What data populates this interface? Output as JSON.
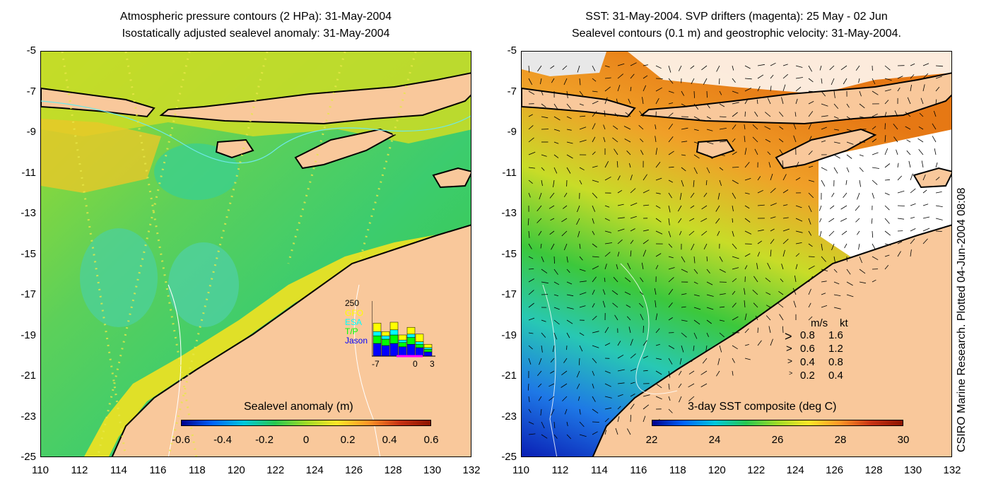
{
  "left_panel": {
    "title_line1": "Atmospheric pressure contours (2 HPa): 31-May-2004",
    "title_line2": "Isostatically adjusted sealevel anomaly: 31-May-2004",
    "y_ticks": [
      "-5",
      "-7",
      "-9",
      "-11",
      "-13",
      "-15",
      "-17",
      "-19",
      "-21",
      "-23",
      "-25"
    ],
    "x_ticks": [
      "110",
      "112",
      "114",
      "116",
      "118",
      "120",
      "122",
      "124",
      "126",
      "128",
      "130",
      "132"
    ],
    "colorbar": {
      "label": "Sealevel anomaly (m)",
      "ticks": [
        "-0.6",
        "-0.4",
        "-0.2",
        "0",
        "0.2",
        "0.4",
        "0.6"
      ],
      "range": [
        -0.6,
        0.6
      ]
    },
    "histogram": {
      "y_top_label": "250",
      "legend": [
        {
          "name": "GFO",
          "color": "#ffff00"
        },
        {
          "name": "ESA",
          "color": "#00ffff"
        },
        {
          "name": "T/P",
          "color": "#00ff00"
        },
        {
          "name": "Jason",
          "color": "#0000ff"
        }
      ],
      "x_ticks": [
        "-7",
        "0",
        "3"
      ]
    }
  },
  "right_panel": {
    "title_line1": "SST: 31-May-2004. SVP drifters (magenta): 25 May - 02 Jun",
    "title_line2": "Sealevel contours (0.1 m) and geostrophic velocity: 31-May-2004.",
    "y_ticks": [
      "-5",
      "-7",
      "-9",
      "-11",
      "-13",
      "-15",
      "-17",
      "-19",
      "-21",
      "-23",
      "-25"
    ],
    "x_ticks": [
      "110",
      "112",
      "114",
      "116",
      "118",
      "120",
      "122",
      "124",
      "126",
      "128",
      "130",
      "132"
    ],
    "colorbar": {
      "label": "3-day SST composite (deg C)",
      "ticks": [
        "22",
        "24",
        "26",
        "28",
        "30"
      ],
      "range": [
        22,
        30
      ]
    },
    "velocity_legend": {
      "header_ms": "m/s",
      "header_kt": "kt",
      "rows": [
        {
          "ms": "0.8",
          "kt": "1.6"
        },
        {
          "ms": "0.6",
          "kt": "1.2"
        },
        {
          "ms": "0.4",
          "kt": "0.8"
        },
        {
          "ms": "0.2",
          "kt": "0.4"
        }
      ]
    }
  },
  "credit": "CSIRO Marine Research. Plotted 04-Jun-2004 08:08",
  "colors": {
    "land": "#f9c89b",
    "coast": "#000000",
    "ocean_mid": "#1ec832",
    "drifter": "#ff00ff"
  }
}
